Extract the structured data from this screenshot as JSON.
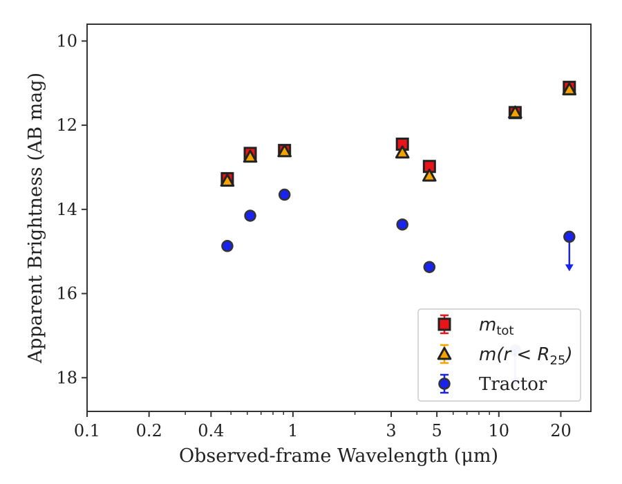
{
  "chart_data": {
    "type": "scatter",
    "xscale": "log",
    "xlim": [
      0.1,
      28
    ],
    "ylim": [
      18.8,
      9.6
    ],
    "y_inverted": true,
    "xlabel": "Observed-frame Wavelength (μm)",
    "ylabel": "Apparent Brightness (AB mag)",
    "xticks": [
      {
        "value": 0.1,
        "label": "0.1"
      },
      {
        "value": 0.2,
        "label": "0.2"
      },
      {
        "value": 0.4,
        "label": "0.4"
      },
      {
        "value": 1,
        "label": "1"
      },
      {
        "value": 3,
        "label": "3"
      },
      {
        "value": 5,
        "label": "5"
      },
      {
        "value": 10,
        "label": "10"
      },
      {
        "value": 20,
        "label": "20"
      }
    ],
    "yticks": [
      {
        "value": 10,
        "label": "10"
      },
      {
        "value": 12,
        "label": "12"
      },
      {
        "value": 14,
        "label": "14"
      },
      {
        "value": 16,
        "label": "16"
      },
      {
        "value": 18,
        "label": "18"
      }
    ],
    "legend_position": "lower right",
    "series": [
      {
        "name": "m_tot",
        "marker": "square",
        "color": "#e8141a",
        "points": [
          {
            "x": 0.48,
            "y": 13.27
          },
          {
            "x": 0.62,
            "y": 12.67
          },
          {
            "x": 0.91,
            "y": 12.6
          },
          {
            "x": 3.4,
            "y": 12.45
          },
          {
            "x": 4.6,
            "y": 12.98
          },
          {
            "x": 12.0,
            "y": 11.7
          },
          {
            "x": 22.0,
            "y": 11.1
          }
        ]
      },
      {
        "name": "m(r < R25)",
        "marker": "triangle",
        "color": "#f5a300",
        "points": [
          {
            "x": 0.48,
            "y": 13.32
          },
          {
            "x": 0.62,
            "y": 12.75
          },
          {
            "x": 0.91,
            "y": 12.62
          },
          {
            "x": 3.4,
            "y": 12.65
          },
          {
            "x": 4.6,
            "y": 13.2
          },
          {
            "x": 12.0,
            "y": 11.7
          },
          {
            "x": 22.0,
            "y": 11.15
          }
        ]
      },
      {
        "name": "Tractor",
        "marker": "circle",
        "color": "#1a22ee",
        "points": [
          {
            "x": 0.48,
            "y": 14.87
          },
          {
            "x": 0.62,
            "y": 14.15
          },
          {
            "x": 0.91,
            "y": 13.65
          },
          {
            "x": 3.4,
            "y": 14.36
          },
          {
            "x": 4.6,
            "y": 15.37
          },
          {
            "x": 12.0,
            "y": 17.35,
            "upper_limit": true,
            "faded": true
          },
          {
            "x": 22.0,
            "y": 14.65,
            "upper_limit": true
          }
        ]
      }
    ],
    "legend": [
      {
        "label_main": "m",
        "label_sub": "tot",
        "marker": "square",
        "color": "#e8141a"
      },
      {
        "label_math": "m(r < R",
        "label_sub": "25",
        "label_tail": ")",
        "marker": "triangle",
        "color": "#f5a300"
      },
      {
        "label": "Tractor",
        "marker": "circle",
        "color": "#1a22ee"
      }
    ]
  }
}
